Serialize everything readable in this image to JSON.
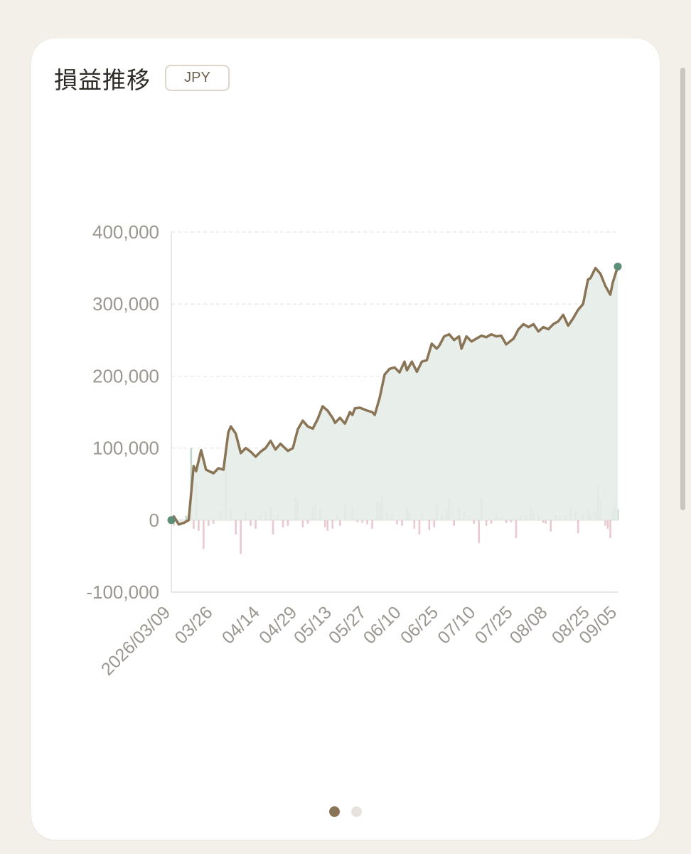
{
  "card": {
    "title": "損益推移",
    "currency_badge": "JPY"
  },
  "pagination": {
    "pages": 2,
    "active": 0
  },
  "colors": {
    "line": "#8a7456",
    "area": "#e6ece8",
    "bar_positive": "#bcd3c5",
    "bar_negative": "#e9c9cf",
    "endpoint": "#5e8e78",
    "grid": "#e2dfdb"
  },
  "chart_data": {
    "type": "line",
    "title": "損益推移",
    "ylim": [
      -100000,
      400000
    ],
    "yticks": [
      "400,000",
      "300,000",
      "200,000",
      "100,000",
      "0",
      "-100,000"
    ],
    "ytick_values": [
      400000,
      300000,
      200000,
      100000,
      0,
      -100000
    ],
    "xticks": [
      "2026/03/09",
      "03/26",
      "04/14",
      "04/29",
      "05/13",
      "05/27",
      "06/10",
      "06/25",
      "07/10",
      "07/25",
      "08/08",
      "08/25",
      "09/05"
    ],
    "grid": true,
    "series": [
      {
        "kind": "cumulative",
        "style": "line+area",
        "points": [
          [
            "2026/03/09",
            0
          ],
          [
            "2026/03/10",
            5000
          ],
          [
            "2026/03/12",
            -6000
          ],
          [
            "2026/03/14",
            -4000
          ],
          [
            "2026/03/16",
            0
          ],
          [
            "2026/03/18",
            75000
          ],
          [
            "2026/03/19",
            68000
          ],
          [
            "2026/03/21",
            97000
          ],
          [
            "2026/03/23",
            70000
          ],
          [
            "2026/03/26",
            65000
          ],
          [
            "2026/03/28",
            72000
          ],
          [
            "2026/03/30",
            70000
          ],
          [
            "2026/04/01",
            122000
          ],
          [
            "2026/04/02",
            130000
          ],
          [
            "2026/04/04",
            120000
          ],
          [
            "2026/04/06",
            93000
          ],
          [
            "2026/04/08",
            100000
          ],
          [
            "2026/04/10",
            95000
          ],
          [
            "2026/04/12",
            88000
          ],
          [
            "2026/04/14",
            95000
          ],
          [
            "2026/04/16",
            100000
          ],
          [
            "2026/04/18",
            110000
          ],
          [
            "2026/04/20",
            98000
          ],
          [
            "2026/04/22",
            106000
          ],
          [
            "2026/04/25",
            96000
          ],
          [
            "2026/04/27",
            100000
          ],
          [
            "2026/04/29",
            126000
          ],
          [
            "2026/05/01",
            138000
          ],
          [
            "2026/05/03",
            130000
          ],
          [
            "2026/05/05",
            127000
          ],
          [
            "2026/05/07",
            140000
          ],
          [
            "2026/05/09",
            158000
          ],
          [
            "2026/05/11",
            152000
          ],
          [
            "2026/05/13",
            142000
          ],
          [
            "2026/05/14",
            135000
          ],
          [
            "2026/05/16",
            142000
          ],
          [
            "2026/05/18",
            134000
          ],
          [
            "2026/05/20",
            150000
          ],
          [
            "2026/05/21",
            146000
          ],
          [
            "2026/05/22",
            155000
          ],
          [
            "2026/05/24",
            156000
          ],
          [
            "2026/05/27",
            152000
          ],
          [
            "2026/05/29",
            150000
          ],
          [
            "2026/05/30",
            146000
          ],
          [
            "2026/06/01",
            170000
          ],
          [
            "2026/06/03",
            202000
          ],
          [
            "2026/06/05",
            210000
          ],
          [
            "2026/06/07",
            212000
          ],
          [
            "2026/06/09",
            205000
          ],
          [
            "2026/06/11",
            220000
          ],
          [
            "2026/06/12",
            208000
          ],
          [
            "2026/06/14",
            220000
          ],
          [
            "2026/06/16",
            206000
          ],
          [
            "2026/06/18",
            220000
          ],
          [
            "2026/06/20",
            222000
          ],
          [
            "2026/06/22",
            245000
          ],
          [
            "2026/06/24",
            238000
          ],
          [
            "2026/06/25",
            242000
          ],
          [
            "2026/06/27",
            255000
          ],
          [
            "2026/06/29",
            258000
          ],
          [
            "2026/07/01",
            250000
          ],
          [
            "2026/07/03",
            255000
          ],
          [
            "2026/07/04",
            238000
          ],
          [
            "2026/07/06",
            255000
          ],
          [
            "2026/07/08",
            248000
          ],
          [
            "2026/07/10",
            252000
          ],
          [
            "2026/07/12",
            256000
          ],
          [
            "2026/07/14",
            254000
          ],
          [
            "2026/07/16",
            258000
          ],
          [
            "2026/07/18",
            255000
          ],
          [
            "2026/07/20",
            256000
          ],
          [
            "2026/07/22",
            244000
          ],
          [
            "2026/07/25",
            252000
          ],
          [
            "2026/07/27",
            265000
          ],
          [
            "2026/07/29",
            272000
          ],
          [
            "2026/07/31",
            268000
          ],
          [
            "2026/08/02",
            272000
          ],
          [
            "2026/08/04",
            262000
          ],
          [
            "2026/08/06",
            268000
          ],
          [
            "2026/08/08",
            265000
          ],
          [
            "2026/08/10",
            272000
          ],
          [
            "2026/08/12",
            276000
          ],
          [
            "2026/08/14",
            285000
          ],
          [
            "2026/08/16",
            270000
          ],
          [
            "2026/08/18",
            280000
          ],
          [
            "2026/08/20",
            292000
          ],
          [
            "2026/08/22",
            300000
          ],
          [
            "2026/08/24",
            334000
          ],
          [
            "2026/08/25",
            336000
          ],
          [
            "2026/08/27",
            350000
          ],
          [
            "2026/08/29",
            342000
          ],
          [
            "2026/08/31",
            325000
          ],
          [
            "2026/09/02",
            313000
          ],
          [
            "2026/09/03",
            330000
          ],
          [
            "2026/09/05",
            352000
          ]
        ]
      },
      {
        "kind": "daily",
        "style": "bar",
        "points": [
          [
            "2026/03/09",
            5000
          ],
          [
            "2026/03/10",
            -8000
          ],
          [
            "2026/03/12",
            -5000
          ],
          [
            "2026/03/15",
            6000
          ],
          [
            "2026/03/17",
            100000
          ],
          [
            "2026/03/18",
            -12000
          ],
          [
            "2026/03/19",
            52000
          ],
          [
            "2026/03/20",
            -15000
          ],
          [
            "2026/03/22",
            -40000
          ],
          [
            "2026/03/24",
            -8000
          ],
          [
            "2026/03/26",
            -5000
          ],
          [
            "2026/03/29",
            12000
          ],
          [
            "2026/03/31",
            85000
          ],
          [
            "2026/04/02",
            15000
          ],
          [
            "2026/04/04",
            -20000
          ],
          [
            "2026/04/06",
            -47000
          ],
          [
            "2026/04/08",
            12000
          ],
          [
            "2026/04/10",
            -8000
          ],
          [
            "2026/04/12",
            -12000
          ],
          [
            "2026/04/14",
            8000
          ],
          [
            "2026/04/16",
            12000
          ],
          [
            "2026/04/18",
            18000
          ],
          [
            "2026/04/19",
            -20000
          ],
          [
            "2026/04/21",
            8000
          ],
          [
            "2026/04/23",
            -10000
          ],
          [
            "2026/04/25",
            -8000
          ],
          [
            "2026/04/28",
            32000
          ],
          [
            "2026/04/29",
            28000
          ],
          [
            "2026/05/01",
            -10000
          ],
          [
            "2026/05/03",
            -5000
          ],
          [
            "2026/05/05",
            18000
          ],
          [
            "2026/05/06",
            25000
          ],
          [
            "2026/05/08",
            16000
          ],
          [
            "2026/05/10",
            -10000
          ],
          [
            "2026/05/11",
            -15000
          ],
          [
            "2026/05/13",
            -12000
          ],
          [
            "2026/05/15",
            8000
          ],
          [
            "2026/05/16",
            -8000
          ],
          [
            "2026/05/18",
            22000
          ],
          [
            "2026/05/21",
            18000
          ],
          [
            "2026/05/23",
            -3000
          ],
          [
            "2026/05/25",
            -4000
          ],
          [
            "2026/05/27",
            -6000
          ],
          [
            "2026/05/29",
            -12000
          ],
          [
            "2026/05/31",
            24000
          ],
          [
            "2026/06/01",
            25000
          ],
          [
            "2026/06/02",
            35000
          ],
          [
            "2026/06/04",
            10000
          ],
          [
            "2026/06/06",
            8000
          ],
          [
            "2026/06/08",
            -6000
          ],
          [
            "2026/06/10",
            -8000
          ],
          [
            "2026/06/12",
            18000
          ],
          [
            "2026/06/13",
            12000
          ],
          [
            "2026/06/15",
            -12000
          ],
          [
            "2026/06/17",
            -20000
          ],
          [
            "2026/06/18",
            10000
          ],
          [
            "2026/06/21",
            -14000
          ],
          [
            "2026/06/23",
            -10000
          ],
          [
            "2026/06/24",
            22000
          ],
          [
            "2026/06/26",
            8000
          ],
          [
            "2026/06/28",
            16000
          ],
          [
            "2026/06/29",
            30000
          ],
          [
            "2026/07/01",
            -8000
          ],
          [
            "2026/07/03",
            18000
          ],
          [
            "2026/07/05",
            10000
          ],
          [
            "2026/07/07",
            5000
          ],
          [
            "2026/07/09",
            -5000
          ],
          [
            "2026/07/11",
            -32000
          ],
          [
            "2026/07/12",
            30000
          ],
          [
            "2026/07/14",
            -8000
          ],
          [
            "2026/07/16",
            -5000
          ],
          [
            "2026/07/18",
            8000
          ],
          [
            "2026/07/20",
            5000
          ],
          [
            "2026/07/22",
            -4000
          ],
          [
            "2026/07/24",
            -3000
          ],
          [
            "2026/07/26",
            -25000
          ],
          [
            "2026/07/28",
            8000
          ],
          [
            "2026/07/30",
            6000
          ],
          [
            "2026/08/01",
            18000
          ],
          [
            "2026/08/02",
            10000
          ],
          [
            "2026/08/04",
            6000
          ],
          [
            "2026/08/06",
            -4000
          ],
          [
            "2026/08/07",
            -5000
          ],
          [
            "2026/08/09",
            -16000
          ],
          [
            "2026/08/11",
            6000
          ],
          [
            "2026/08/13",
            4000
          ],
          [
            "2026/08/15",
            8000
          ],
          [
            "2026/08/17",
            15000
          ],
          [
            "2026/08/19",
            12000
          ],
          [
            "2026/08/20",
            -18000
          ],
          [
            "2026/08/22",
            8000
          ],
          [
            "2026/08/24",
            14000
          ],
          [
            "2026/08/25",
            8000
          ],
          [
            "2026/08/27",
            12000
          ],
          [
            "2026/08/28",
            47000
          ],
          [
            "2026/08/29",
            28000
          ],
          [
            "2026/08/31",
            -8000
          ],
          [
            "2026/09/01",
            -12000
          ],
          [
            "2026/09/02",
            -25000
          ],
          [
            "2026/09/03",
            15000
          ],
          [
            "2026/09/04",
            22000
          ],
          [
            "2026/09/05",
            15000
          ]
        ]
      }
    ]
  }
}
